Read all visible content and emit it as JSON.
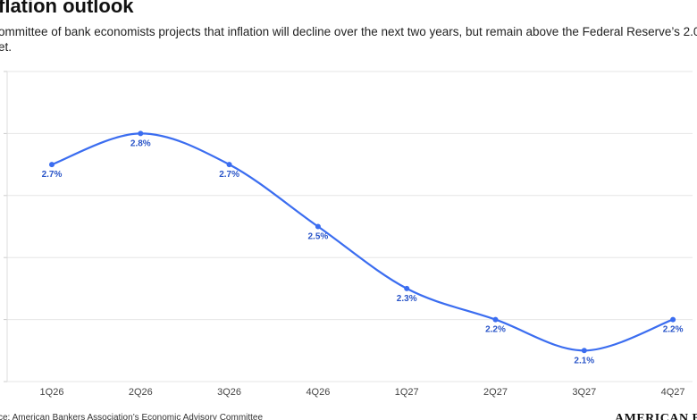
{
  "chart_data": {
    "type": "line",
    "title": "flation outlook",
    "subtitle": [
      "ommittee of bank economists projects that inflation will decline over the next two years, but remain above the Federal Reserve’s 2.0",
      "et."
    ],
    "categories": [
      "1Q26",
      "2Q26",
      "3Q26",
      "4Q26",
      "1Q27",
      "2Q27",
      "3Q27",
      "4Q27"
    ],
    "series": [
      {
        "color": "#3b6df0",
        "values": [
          2.7,
          2.8,
          2.7,
          2.5,
          2.3,
          2.2,
          2.1,
          2.2
        ],
        "value_labels": [
          "2.7%",
          "2.8%",
          "2.7%",
          "2.5%",
          "2.3%",
          "2.2%",
          "2.1%",
          "2.2%"
        ]
      }
    ],
    "ylim": [
      2.0,
      3.0
    ],
    "yticks": [
      2.0,
      2.2,
      2.4,
      2.6,
      2.8,
      3.0
    ],
    "grid": true,
    "source": "ce: American Bankers Association’s Economic Advisory Committee",
    "logo": "AMERICAN BAN"
  }
}
